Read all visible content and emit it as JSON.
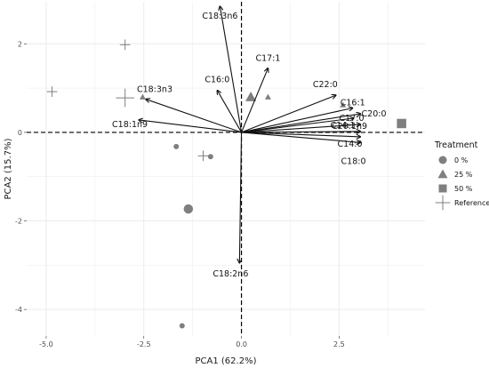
{
  "chart_data": {
    "type": "scatter",
    "subtype": "pca-biplot",
    "xlabel": "PCA1 (62.2%)",
    "ylabel": "PCA2 (15.7%)",
    "xlim": [
      -5.5,
      4.7
    ],
    "ylim": [
      -4.6,
      2.95
    ],
    "x_ticks": [
      -5.0,
      -2.5,
      0.0,
      2.5
    ],
    "x_tick_labels": [
      "-5.0",
      "-2.5",
      "0.0",
      "2.5"
    ],
    "y_ticks": [
      -4,
      -2,
      0,
      2
    ],
    "y_tick_labels": [
      "-4",
      "-2",
      "0",
      "2"
    ],
    "grid": true,
    "reference_lines": {
      "x": 0,
      "y": 0,
      "style": "dashed"
    },
    "legend": {
      "title": "Treatment",
      "position": "right",
      "entries": [
        {
          "label": "0 %",
          "shape": "circle"
        },
        {
          "label": "25 %",
          "shape": "triangle"
        },
        {
          "label": "50 %",
          "shape": "square"
        },
        {
          "label": "Reference",
          "shape": "plus"
        }
      ]
    },
    "points": [
      {
        "group": "0 %",
        "x": -1.67,
        "y": -0.32,
        "size": "small"
      },
      {
        "group": "0 %",
        "x": -0.79,
        "y": -0.55,
        "size": "small"
      },
      {
        "group": "0 %",
        "x": -1.36,
        "y": -1.73,
        "size": "large"
      },
      {
        "group": "0 %",
        "x": -1.52,
        "y": -4.37,
        "size": "small"
      },
      {
        "group": "25 %",
        "x": -2.53,
        "y": 0.8,
        "size": "small"
      },
      {
        "group": "25 %",
        "x": 0.24,
        "y": 0.8,
        "size": "large"
      },
      {
        "group": "25 %",
        "x": 0.68,
        "y": 0.8,
        "size": "small"
      },
      {
        "group": "25 %",
        "x": 2.6,
        "y": 0.62,
        "size": "small"
      },
      {
        "group": "50 %",
        "x": 4.1,
        "y": 0.2,
        "size": "large"
      },
      {
        "group": "Reference",
        "x": -2.98,
        "y": 1.98,
        "size": "small"
      },
      {
        "group": "Reference",
        "x": -4.85,
        "y": 0.92,
        "size": "small"
      },
      {
        "group": "Reference",
        "x": -2.98,
        "y": 0.78,
        "size": "large"
      },
      {
        "group": "Reference",
        "x": -0.98,
        "y": -0.53,
        "size": "small"
      }
    ],
    "loadings": [
      {
        "label": "C18:3n6",
        "x": -0.55,
        "y": 2.85
      },
      {
        "label": "C17:1",
        "x": 0.68,
        "y": 1.45
      },
      {
        "label": "C16:0",
        "x": -0.62,
        "y": 0.95
      },
      {
        "label": "C18:3n3",
        "x": -2.45,
        "y": 0.75
      },
      {
        "label": "C18:1n9",
        "x": -2.63,
        "y": 0.28
      },
      {
        "label": "C22:0",
        "x": 2.42,
        "y": 0.84
      },
      {
        "label": "C16:1",
        "x": 2.85,
        "y": 0.55
      },
      {
        "label": "C20:1n9",
        "x": 2.88,
        "y": 0.32
      },
      {
        "label": "C20:0",
        "x": 3.05,
        "y": 0.42
      },
      {
        "label": "C17:0",
        "x": 3.05,
        "y": 0.18
      },
      {
        "label": "C14:1",
        "x": 3.05,
        "y": 0.02
      },
      {
        "label": "C14:0",
        "x": 3.05,
        "y": -0.1
      },
      {
        "label": "C18:0",
        "x": 3.05,
        "y": -0.23
      },
      {
        "label": "C18:2n6",
        "x": -0.05,
        "y": -2.95
      }
    ],
    "colors": {
      "points": "#7f7f7f",
      "arrows": "#111111",
      "grid": "#ebebeb"
    }
  }
}
